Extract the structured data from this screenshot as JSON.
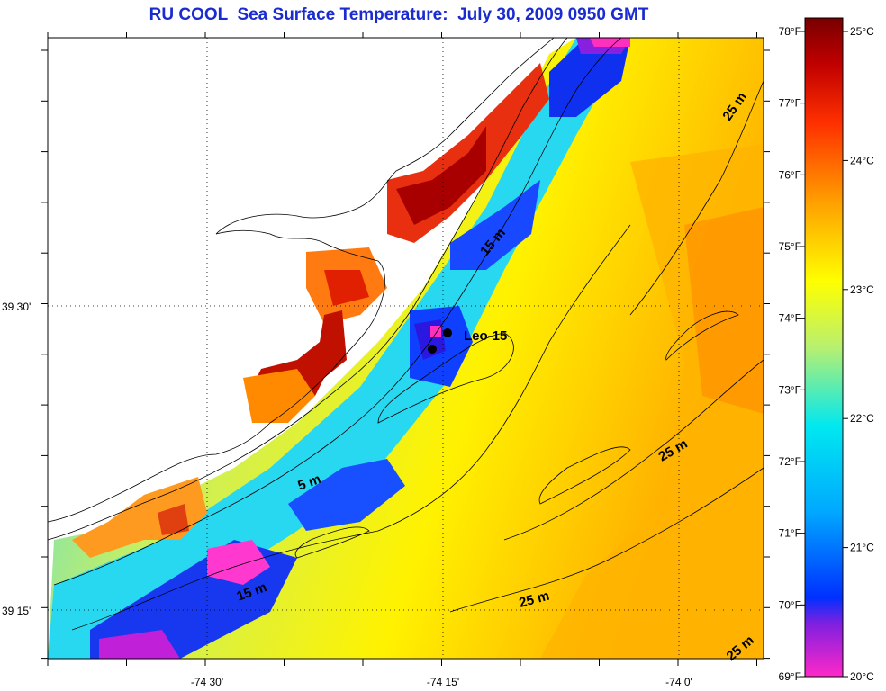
{
  "title": "RU COOL  Sea Surface Temperature:  July 30, 2009 0950 GMT",
  "map": {
    "lon_labels": [
      "-74 30'",
      "-74 15'",
      "-74 0'"
    ],
    "lat_labels": [
      "39 30'",
      "39 15'"
    ],
    "station_label": "Leo-15",
    "depth_labels": [
      "5 m",
      "15 m",
      "15 m",
      "25 m",
      "25 m",
      "25 m",
      "25 m"
    ]
  },
  "colorbar": {
    "f_labels": [
      "78°F",
      "77°F",
      "76°F",
      "75°F",
      "74°F",
      "73°F",
      "72°F",
      "71°F",
      "70°F",
      "69°F"
    ],
    "c_labels": [
      "25°C",
      "24°C",
      "23°C",
      "22°C",
      "21°C",
      "20°C"
    ],
    "colors": [
      "#ff28c8",
      "#4020e0",
      "#0030ff",
      "#00a8ff",
      "#00e8f0",
      "#b8f070",
      "#ffff00",
      "#ffa000",
      "#ff3000",
      "#c00000",
      "#780000"
    ]
  }
}
